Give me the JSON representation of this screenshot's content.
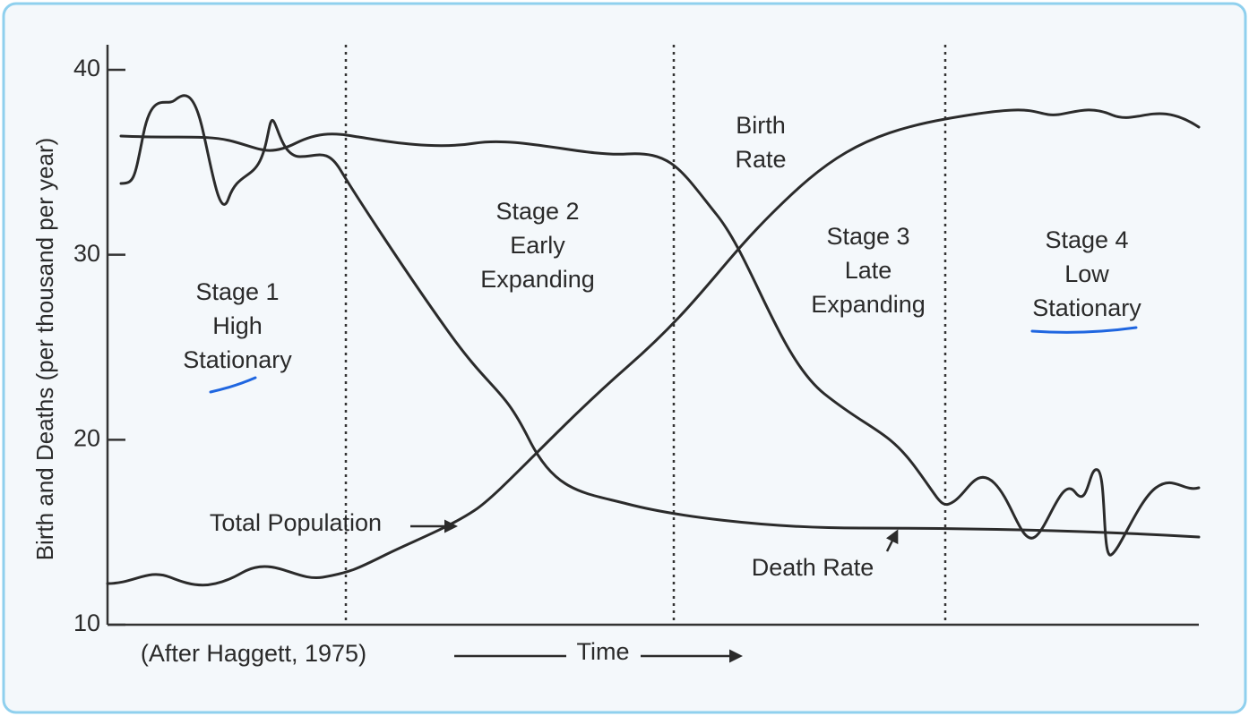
{
  "diagram": {
    "y_axis_title": "Birth and Deaths (per thousand per year)",
    "yticks": [
      10,
      20,
      30,
      40
    ],
    "stages": [
      {
        "lines": [
          "Stage 1",
          "High",
          "Stationary"
        ]
      },
      {
        "lines": [
          "Stage 2",
          "Early",
          "Expanding"
        ]
      },
      {
        "lines": [
          "Stage 3",
          "Late",
          "Expanding"
        ]
      },
      {
        "lines": [
          "Stage 4",
          "Low",
          "Stationary"
        ]
      }
    ],
    "curve_labels": {
      "birth_rate": [
        "Birth",
        "Rate"
      ],
      "death_rate": "Death Rate",
      "total_population": "Total Population"
    },
    "x_axis_label": "Time",
    "source": "(After Haggett, 1975)"
  }
}
